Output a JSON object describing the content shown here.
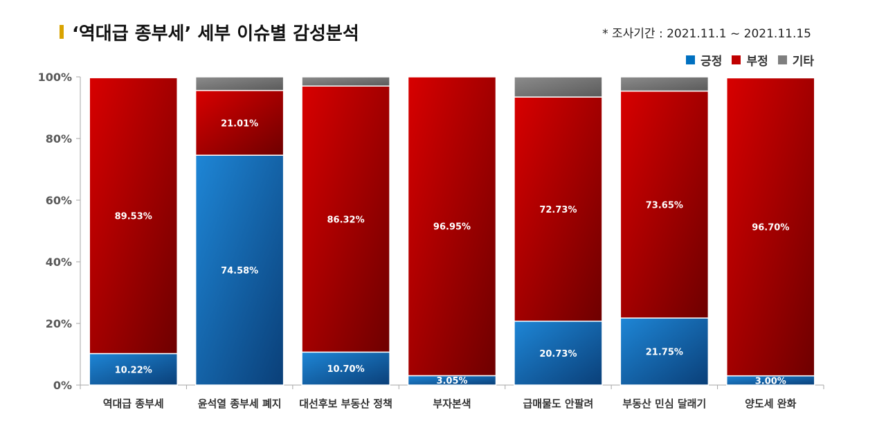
{
  "header": {
    "title": "‘역대급 종부세’ 세부 이슈별 감성분석",
    "period": "* 조사기간 : 2021.11.1 ~ 2021.11.15"
  },
  "legend": [
    {
      "label": "긍정",
      "color": "#0070c0"
    },
    {
      "label": "부정",
      "color": "#c00000"
    },
    {
      "label": "기타",
      "color": "#7f7f7f"
    }
  ],
  "chart_data": {
    "type": "bar",
    "stacked": true,
    "title": "‘역대급 종부세’ 세부 이슈별 감성분석",
    "xlabel": "",
    "ylabel": "",
    "ylim": [
      0,
      100
    ],
    "y_ticks": [
      "0%",
      "20%",
      "40%",
      "60%",
      "80%",
      "100%"
    ],
    "grid": false,
    "legend_position": "top-right",
    "categories": [
      "역대급 종부세",
      "윤석열 종부세 폐지",
      "대선후보 부동산 정책",
      "부자본색",
      "급매물도 안팔려",
      "부동산 민심 달래기",
      "양도세 완화"
    ],
    "series": [
      {
        "name": "긍정",
        "color": "#0070c0",
        "values": [
          10.22,
          74.58,
          10.7,
          3.05,
          20.73,
          21.75,
          3.0
        ]
      },
      {
        "name": "부정",
        "color": "#c00000",
        "values": [
          89.53,
          21.01,
          86.32,
          96.95,
          72.73,
          73.65,
          96.7
        ]
      },
      {
        "name": "기타",
        "color": "#7f7f7f",
        "values": [
          0.25,
          4.41,
          2.98,
          0.0,
          6.54,
          4.6,
          0.3
        ]
      }
    ],
    "data_labels": {
      "긍정": [
        "10.22%",
        "74.58%",
        "10.70%",
        "3.05%",
        "20.73%",
        "21.75%",
        "3.00%"
      ],
      "부정": [
        "89.53%",
        "21.01%",
        "86.32%",
        "96.95%",
        "72.73%",
        "73.65%",
        "96.70%"
      ]
    }
  }
}
